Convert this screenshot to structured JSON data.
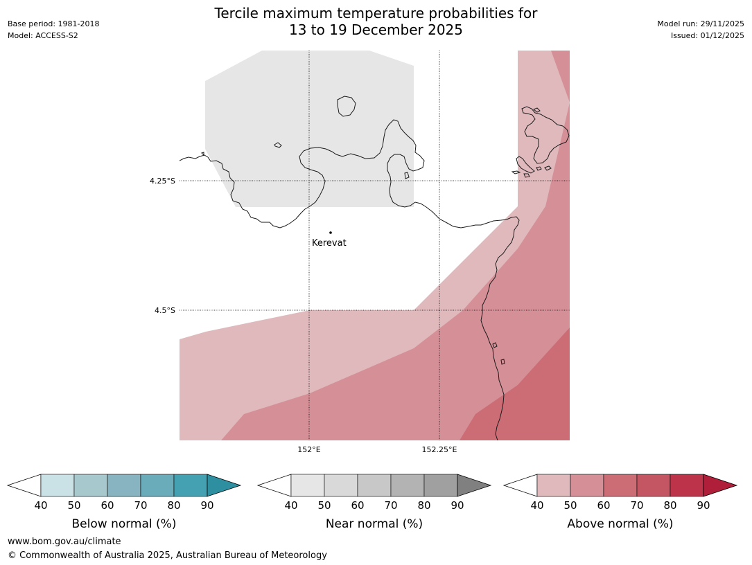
{
  "header": {
    "title_line1": "Tercile maximum temperature probabilities for",
    "title_line2": "13 to 19 December 2025",
    "base_period": "Base period: 1981-2018",
    "model": "Model: ACCESS-S2",
    "model_run": "Model run: 29/11/2025",
    "issued": "Issued: 01/12/2025"
  },
  "map": {
    "lat_labels": [
      "4.25°S",
      "4.5°S"
    ],
    "lon_labels": [
      "152°E",
      "152.25°E"
    ],
    "place_label": "Kerevat"
  },
  "legends": [
    {
      "title": "Below normal (%)",
      "ticks": [
        "40",
        "50",
        "60",
        "70",
        "80",
        "90"
      ],
      "colors": [
        "#cae2e6",
        "#a7c8cd",
        "#87b4c0",
        "#6aacb9",
        "#44a1b1",
        "#2d8f9f"
      ]
    },
    {
      "title": "Near normal (%)",
      "ticks": [
        "40",
        "50",
        "60",
        "70",
        "80",
        "90"
      ],
      "colors": [
        "#e6e6e6",
        "#d9d9d9",
        "#c8c8c8",
        "#b3b3b3",
        "#a0a0a0",
        "#808080"
      ]
    },
    {
      "title": "Above normal (%)",
      "ticks": [
        "40",
        "50",
        "60",
        "70",
        "80",
        "90"
      ],
      "colors": [
        "#e0b9bd",
        "#d58f97",
        "#cc6d76",
        "#c45562",
        "#bd344a",
        "#b01f3a"
      ]
    }
  ],
  "footer": {
    "url": "www.bom.gov.au/climate",
    "copyright": "© Commonwealth of Australia 2025, Australian Bureau of Meteorology"
  }
}
